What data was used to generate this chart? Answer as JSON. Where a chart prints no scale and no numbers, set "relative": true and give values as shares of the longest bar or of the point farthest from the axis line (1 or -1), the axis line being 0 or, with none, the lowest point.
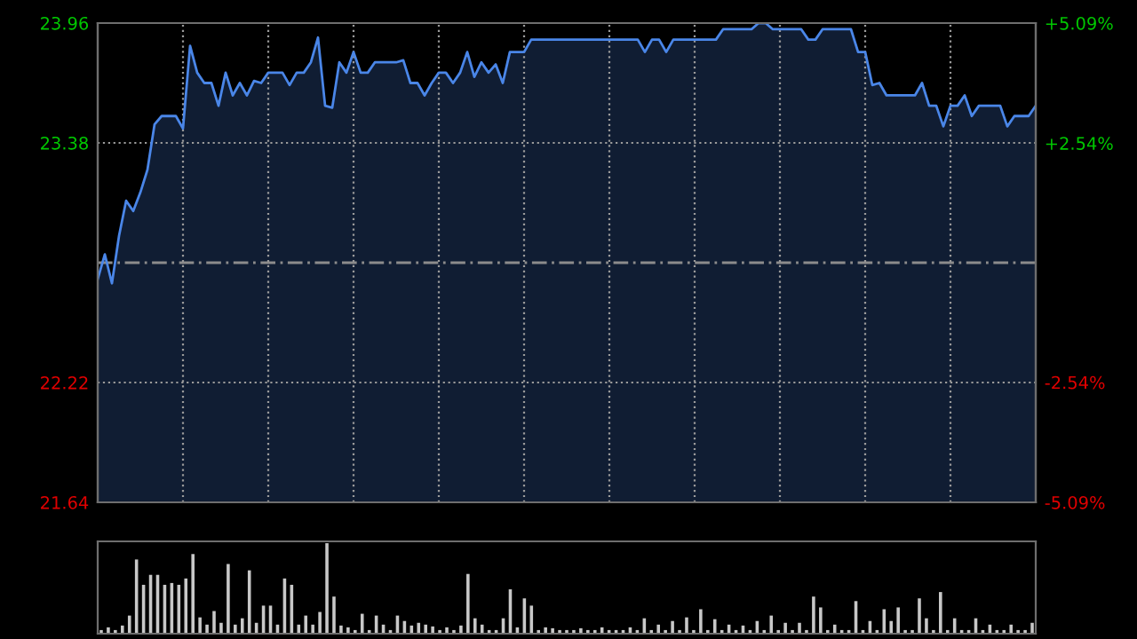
{
  "chart_data": [
    {
      "type": "area",
      "categories": [
        null,
        null,
        null,
        null,
        null,
        null,
        null,
        null,
        null,
        null,
        null,
        null,
        null,
        null,
        null,
        null,
        null,
        null,
        null,
        null,
        null,
        null,
        null,
        null,
        null,
        null,
        null,
        null,
        null,
        null,
        null,
        null,
        null,
        null,
        null,
        null,
        null,
        null,
        null,
        null,
        null,
        null,
        null,
        null,
        null,
        null,
        null,
        null,
        null,
        null,
        null,
        null,
        null,
        null,
        null,
        null,
        null,
        null,
        null,
        null,
        null,
        null,
        null,
        null,
        null,
        null,
        null,
        null,
        null,
        null,
        null,
        null,
        null,
        null,
        null,
        null,
        null,
        null,
        null,
        null,
        null,
        null,
        null,
        null,
        null,
        null,
        null,
        null,
        null,
        null,
        null,
        null,
        null,
        null,
        null,
        null,
        null,
        null,
        null,
        null,
        null,
        null,
        null,
        null,
        null,
        null,
        null,
        null,
        null,
        null,
        null,
        null,
        null,
        null,
        null,
        null,
        null,
        null,
        null,
        null,
        null,
        null,
        null,
        null,
        null,
        null,
        null,
        null,
        null,
        null,
        null,
        null,
        null
      ],
      "ylim": [
        21.64,
        23.96
      ],
      "yticks": [
        21.64,
        22.22,
        23.38,
        23.96
      ],
      "y2lim": [
        -5.09,
        5.09
      ],
      "y2ticks": [
        {
          "value": -5.09,
          "label": "-5.09%"
        },
        {
          "value": -2.54,
          "label": "-2.54%"
        },
        {
          "value": 2.54,
          "label": "+2.54%"
        },
        {
          "value": 5.09,
          "label": "+5.09%"
        }
      ],
      "tick_labels": "y",
      "grid": true,
      "legend": false,
      "marker": "none",
      "line_style": "solid",
      "ref_lines": [
        {
          "axis": "y",
          "value": 22.8,
          "label": null,
          "color": "#8c8c8c",
          "line_style": "dashed"
        }
      ],
      "series": [
        {
          "color": "#4a86e8",
          "values": [
            22.72,
            22.84,
            22.7,
            22.93,
            23.1,
            23.05,
            23.14,
            23.25,
            23.47,
            23.51,
            23.51,
            23.51,
            23.45,
            23.85,
            23.72,
            23.67,
            23.67,
            23.56,
            23.72,
            23.61,
            23.67,
            23.61,
            23.68,
            23.67,
            23.72,
            23.72,
            23.72,
            23.66,
            23.72,
            23.72,
            23.77,
            23.89,
            23.56,
            23.55,
            23.77,
            23.72,
            23.82,
            23.72,
            23.72,
            23.77,
            23.77,
            23.77,
            23.77,
            23.78,
            23.67,
            23.67,
            23.61,
            23.67,
            23.72,
            23.72,
            23.67,
            23.72,
            23.82,
            23.7,
            23.77,
            23.72,
            23.76,
            23.67,
            23.82,
            23.82,
            23.82,
            23.88,
            23.88,
            23.88,
            23.88,
            23.88,
            23.88,
            23.88,
            23.88,
            23.88,
            23.88,
            23.88,
            23.88,
            23.88,
            23.88,
            23.88,
            23.88,
            23.82,
            23.88,
            23.88,
            23.82,
            23.88,
            23.88,
            23.88,
            23.88,
            23.88,
            23.88,
            23.88,
            23.93,
            23.93,
            23.93,
            23.93,
            23.93,
            23.96,
            23.96,
            23.93,
            23.93,
            23.93,
            23.93,
            23.93,
            23.88,
            23.88,
            23.93,
            23.93,
            23.93,
            23.93,
            23.93,
            23.82,
            23.82,
            23.66,
            23.67,
            23.61,
            23.61,
            23.61,
            23.61,
            23.61,
            23.67,
            23.56,
            23.56,
            23.46,
            23.56,
            23.56,
            23.61,
            23.51,
            23.56,
            23.56,
            23.56,
            23.56,
            23.46,
            23.51,
            23.51,
            23.51,
            23.56
          ]
        }
      ]
    },
    {
      "type": "bar",
      "relative": true,
      "tick_labels": false,
      "grid": false,
      "legend": false,
      "categories": [
        null,
        null,
        null,
        null,
        null,
        null,
        null,
        null,
        null,
        null,
        null,
        null,
        null,
        null,
        null,
        null,
        null,
        null,
        null,
        null,
        null,
        null,
        null,
        null,
        null,
        null,
        null,
        null,
        null,
        null,
        null,
        null,
        null,
        null,
        null,
        null,
        null,
        null,
        null,
        null,
        null,
        null,
        null,
        null,
        null,
        null,
        null,
        null,
        null,
        null,
        null,
        null,
        null,
        null,
        null,
        null,
        null,
        null,
        null,
        null,
        null,
        null,
        null,
        null,
        null,
        null,
        null,
        null,
        null,
        null,
        null,
        null,
        null,
        null,
        null,
        null,
        null,
        null,
        null,
        null,
        null,
        null,
        null,
        null,
        null,
        null,
        null,
        null,
        null,
        null,
        null,
        null,
        null,
        null,
        null,
        null,
        null,
        null,
        null,
        null,
        null,
        null,
        null,
        null,
        null,
        null,
        null,
        null,
        null,
        null,
        null,
        null,
        null,
        null,
        null,
        null,
        null,
        null,
        null,
        null,
        null,
        null,
        null,
        null,
        null,
        null,
        null,
        null,
        null,
        null,
        null,
        null,
        null
      ],
      "series": [
        {
          "color": "#c8c8c8",
          "values": [
            0.04,
            0.07,
            0.04,
            0.09,
            0.2,
            0.82,
            0.54,
            0.65,
            0.65,
            0.54,
            0.56,
            0.54,
            0.61,
            0.88,
            0.18,
            0.1,
            0.25,
            0.12,
            0.77,
            0.1,
            0.17,
            0.7,
            0.12,
            0.31,
            0.31,
            0.1,
            0.61,
            0.54,
            0.1,
            0.2,
            0.1,
            0.24,
            1,
            0.41,
            0.09,
            0.07,
            0.04,
            0.22,
            0.04,
            0.2,
            0.1,
            0.04,
            0.2,
            0.14,
            0.09,
            0.12,
            0.1,
            0.08,
            0.04,
            0.07,
            0.04,
            0.09,
            0.66,
            0.17,
            0.1,
            0.04,
            0.04,
            0.17,
            0.49,
            0.07,
            0.39,
            0.31,
            0.04,
            0.07,
            0.06,
            0.04,
            0.04,
            0.04,
            0.06,
            0.04,
            0.04,
            0.07,
            0.04,
            0.04,
            0.04,
            0.07,
            0.04,
            0.17,
            0.04,
            0.1,
            0.04,
            0.14,
            0.04,
            0.18,
            0.04,
            0.27,
            0.04,
            0.16,
            0.04,
            0.1,
            0.04,
            0.09,
            0.04,
            0.14,
            0.04,
            0.2,
            0.04,
            0.12,
            0.04,
            0.12,
            0.04,
            0.41,
            0.29,
            0.04,
            0.1,
            0.04,
            0.04,
            0.36,
            0.04,
            0.14,
            0.04,
            0.27,
            0.14,
            0.29,
            0.04,
            0.04,
            0.39,
            0.17,
            0.04,
            0.46,
            0.04,
            0.17,
            0.04,
            0.04,
            0.17,
            0.04,
            0.1,
            0.04,
            0.04,
            0.1,
            0.04,
            0.04,
            0.12
          ]
        }
      ]
    }
  ]
}
